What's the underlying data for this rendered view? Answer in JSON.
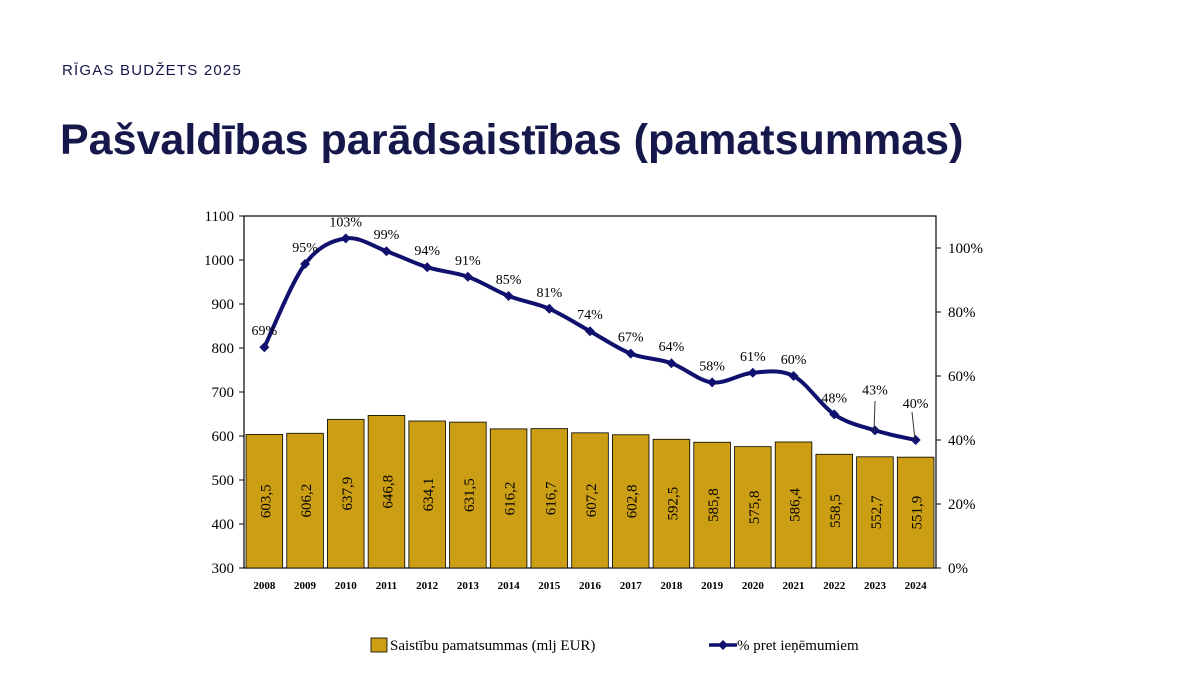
{
  "header": {
    "kicker": "RĪGAS BUDŽETS 2025",
    "title": "Pašvaldības parādsaistības (pamatsummas)"
  },
  "colors": {
    "bar": "#cb9e14",
    "line": "#10106e",
    "text": "#16174a"
  },
  "chart_data": {
    "type": "bar",
    "categories": [
      "2008",
      "2009",
      "2010",
      "2011",
      "2012",
      "2013",
      "2014",
      "2015",
      "2016",
      "2017",
      "2018",
      "2019",
      "2020",
      "2021",
      "2022",
      "2023",
      "2024"
    ],
    "series": [
      {
        "name": "Saistību pamatsummas (mlj EUR)",
        "type": "bar",
        "axis": "left",
        "values": [
          603.5,
          606.2,
          637.9,
          646.8,
          634.1,
          631.5,
          616.2,
          616.7,
          607.2,
          602.8,
          592.5,
          585.8,
          575.8,
          586.4,
          558.5,
          552.7,
          551.9
        ],
        "labels": [
          "603,5",
          "606,2",
          "637,9",
          "646,8",
          "634,1",
          "631,5",
          "616,2",
          "616,7",
          "607,2",
          "602,8",
          "592,5",
          "585,8",
          "575,8",
          "586,4",
          "558,5",
          "552,7",
          "551,9"
        ]
      },
      {
        "name": "% pret ieņēmumiem",
        "type": "line",
        "axis": "right",
        "values": [
          69,
          95,
          103,
          99,
          94,
          91,
          85,
          81,
          74,
          67,
          64,
          58,
          61,
          60,
          48,
          43,
          40
        ],
        "labels": [
          "69%",
          "95%",
          "103%",
          "99%",
          "94%",
          "91%",
          "85%",
          "81%",
          "74%",
          "67%",
          "64%",
          "58%",
          "61%",
          "60%",
          "48%",
          "43%",
          "40%"
        ]
      }
    ],
    "y_left": {
      "ylim": [
        300,
        1100
      ],
      "ticks": [
        "300",
        "400",
        "500",
        "600",
        "700",
        "800",
        "900",
        "1000",
        "1100"
      ]
    },
    "y_right": {
      "ylim": [
        0,
        110
      ],
      "ticks": [
        "0%",
        "20%",
        "40%",
        "60%",
        "80%",
        "100%"
      ]
    },
    "legend_position": "bottom",
    "grid": false
  }
}
